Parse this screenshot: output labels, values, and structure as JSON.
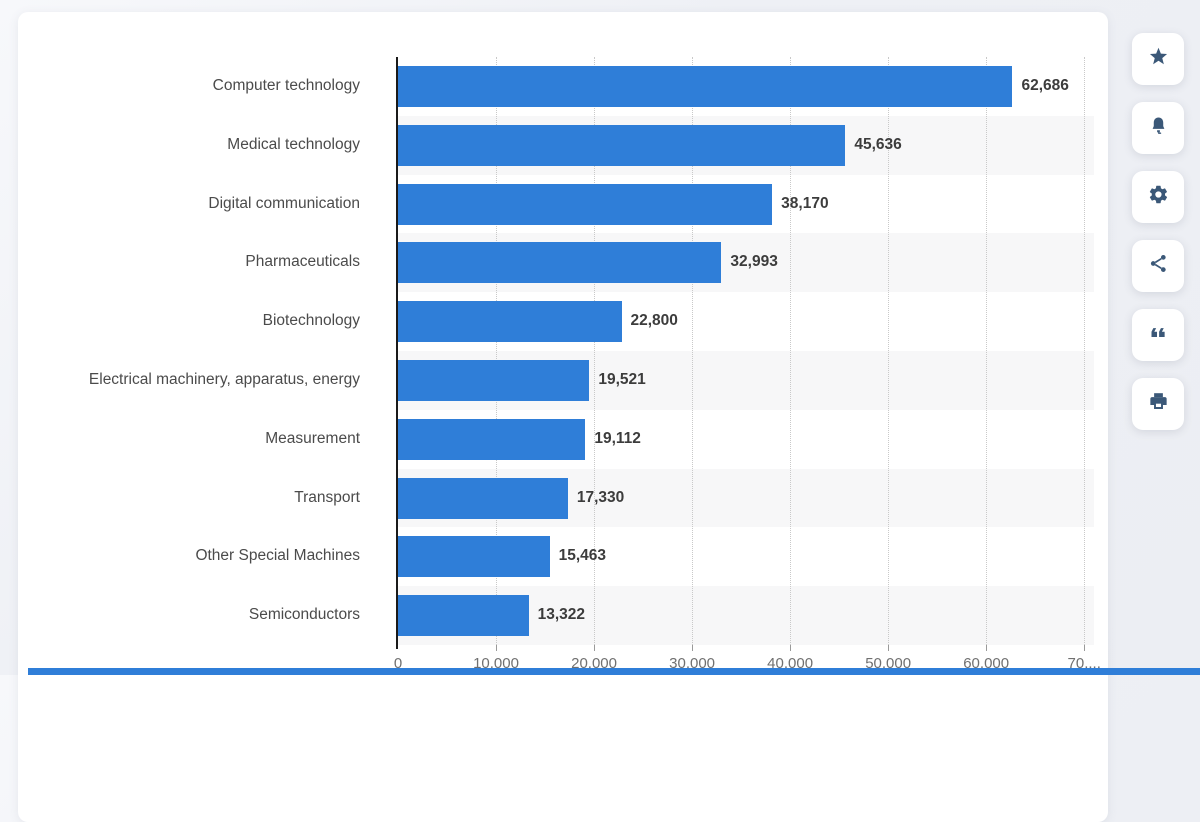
{
  "page": {
    "background": "#eef0f5",
    "card_color": "#ffffff"
  },
  "chart_data": {
    "type": "bar",
    "orientation": "horizontal",
    "title": "",
    "categories": [
      "Computer technology",
      "Medical technology",
      "Digital communication",
      "Pharmaceuticals",
      "Biotechnology",
      "Electrical machinery, apparatus, energy",
      "Measurement",
      "Transport",
      "Other Special Machines",
      "Semiconductors"
    ],
    "values": [
      62686,
      45636,
      38170,
      32993,
      22800,
      19521,
      19112,
      17330,
      15463,
      13322
    ],
    "value_labels": [
      "62,686",
      "45,636",
      "38,170",
      "32,993",
      "22,800",
      "19,521",
      "19,112",
      "17,330",
      "15,463",
      "13,322"
    ],
    "x_ticks": [
      {
        "value": 0,
        "label": "0"
      },
      {
        "value": 10000,
        "label": "10,000"
      },
      {
        "value": 20000,
        "label": "20,000"
      },
      {
        "value": 30000,
        "label": "30,000"
      },
      {
        "value": 40000,
        "label": "40,000"
      },
      {
        "value": 50000,
        "label": "50,000"
      },
      {
        "value": 60000,
        "label": "60,000"
      },
      {
        "value": 70000,
        "label": "70,..."
      }
    ],
    "axis_max": 71000,
    "xlim": [
      0,
      71000
    ],
    "bar_color": "#2f7ed8",
    "zebra_color": "#f7f7f8",
    "grid": "vertical-dotted",
    "legend": "none"
  },
  "action_rail": {
    "icon_color": "#3b5878",
    "buttons": [
      {
        "name": "favorite",
        "icon": "star-icon"
      },
      {
        "name": "alert",
        "icon": "bell-icon"
      },
      {
        "name": "settings",
        "icon": "gear-icon"
      },
      {
        "name": "share",
        "icon": "share-icon"
      },
      {
        "name": "cite",
        "icon": "quote-icon"
      },
      {
        "name": "print",
        "icon": "printer-icon"
      }
    ]
  }
}
